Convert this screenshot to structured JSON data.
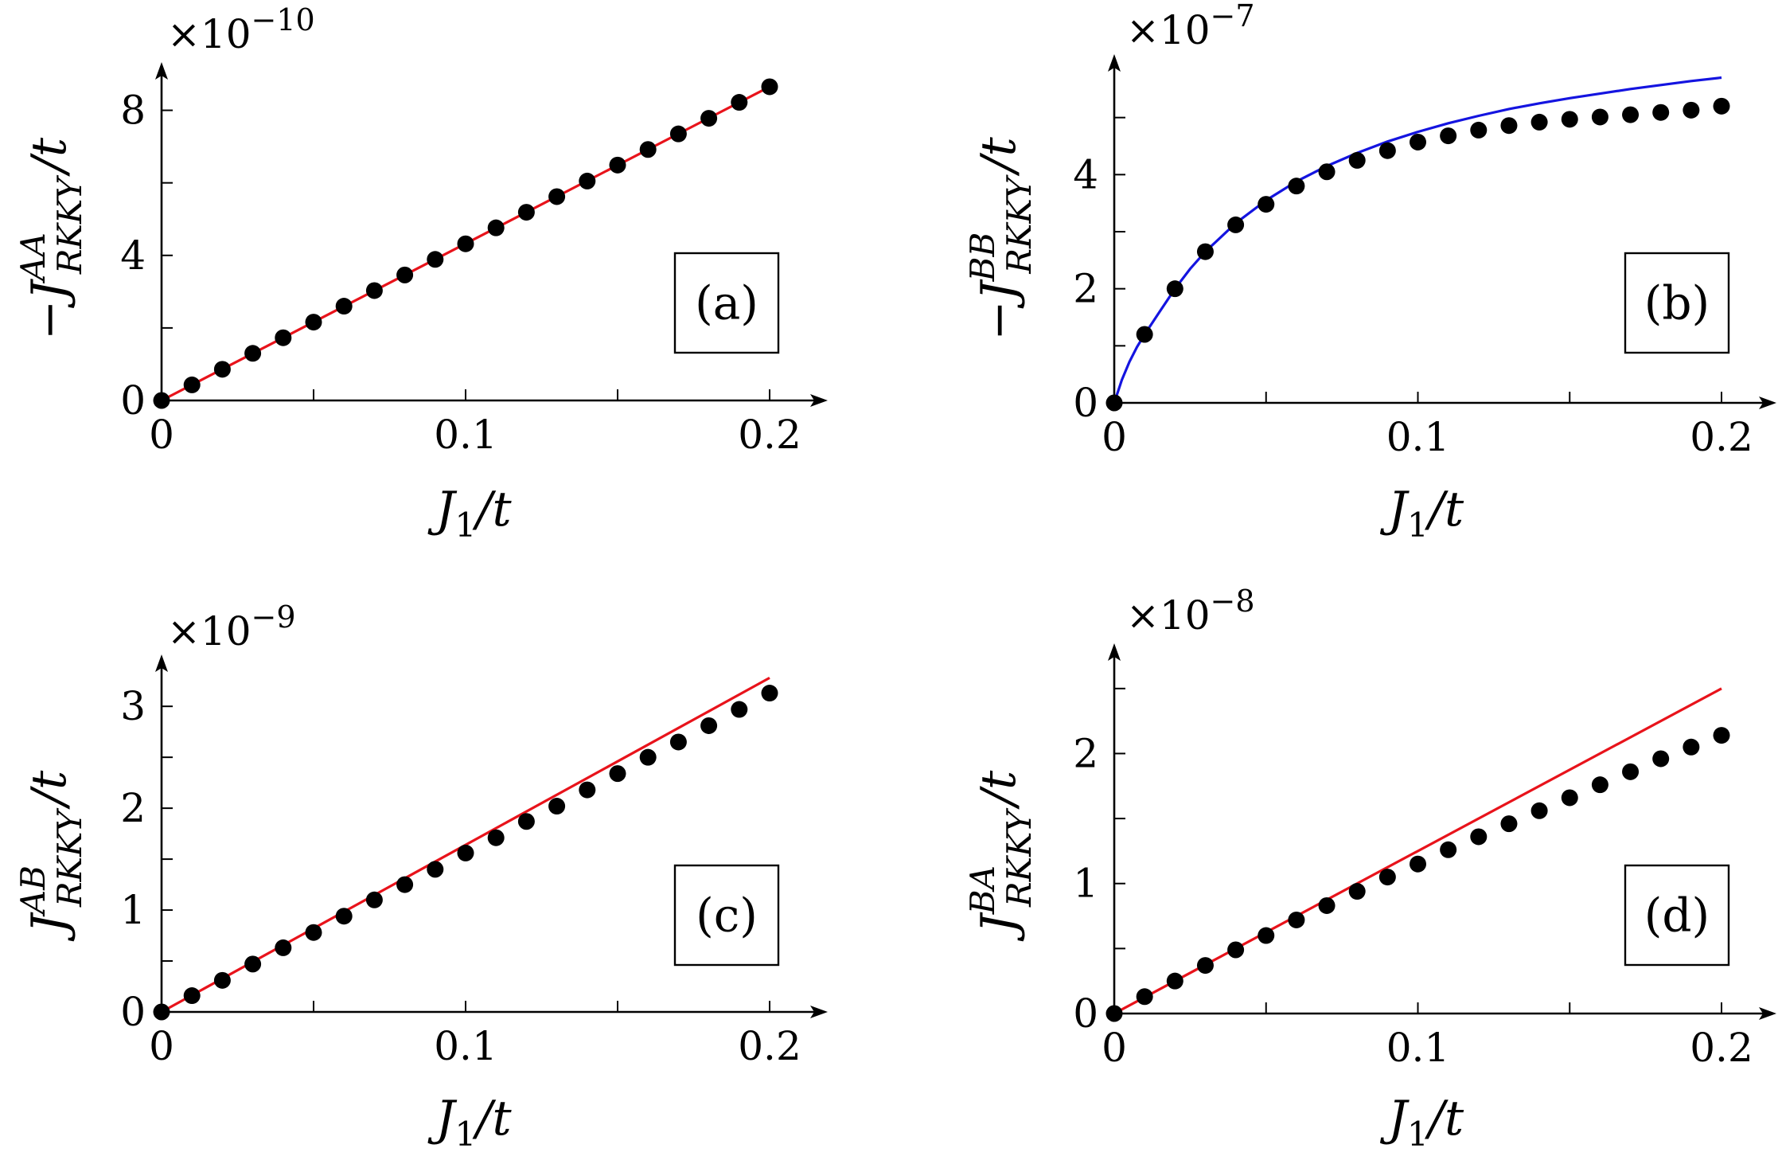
{
  "chart_data": [
    {
      "type": "scatter",
      "panel_label": "(a)",
      "xlabel": "J1/t",
      "ylabel": "−J^AA_RKKY/t",
      "y_multiplier": "×10−10",
      "y_multiplier_base": "×10",
      "y_multiplier_exp": "−10",
      "xlim": [
        0,
        0.2
      ],
      "ylim": [
        0,
        9
      ],
      "xticks": [
        0,
        0.1,
        0.2
      ],
      "xtick_labels": [
        "0",
        "0.1",
        "0.2"
      ],
      "yticks": [
        0,
        4,
        8
      ],
      "ytick_labels": [
        "0",
        "4",
        "8"
      ],
      "y_minor_ticks": [
        2,
        6
      ],
      "grid": false,
      "line_color": "#e8131b",
      "series": [
        {
          "kind": "line",
          "x": [
            0,
            0.2
          ],
          "y": [
            0,
            8.65
          ]
        },
        {
          "kind": "markers",
          "x": [
            0,
            0.01,
            0.02,
            0.03,
            0.04,
            0.05,
            0.06,
            0.07,
            0.08,
            0.09,
            0.1,
            0.11,
            0.12,
            0.13,
            0.14,
            0.15,
            0.16,
            0.17,
            0.18,
            0.19,
            0.2
          ],
          "y": [
            0,
            0.43,
            0.86,
            1.3,
            1.73,
            2.16,
            2.6,
            3.03,
            3.46,
            3.89,
            4.32,
            4.76,
            5.19,
            5.62,
            6.05,
            6.49,
            6.92,
            7.35,
            7.78,
            8.22,
            8.65
          ]
        }
      ]
    },
    {
      "type": "scatter",
      "panel_label": "(b)",
      "xlabel": "J1/t",
      "ylabel": "−J^BB_RKKY/t",
      "y_multiplier": "×10−7",
      "y_multiplier_base": "×10",
      "y_multiplier_exp": "−7",
      "xlim": [
        0,
        0.2
      ],
      "ylim": [
        0,
        6
      ],
      "xticks": [
        0,
        0.1,
        0.2
      ],
      "xtick_labels": [
        "0",
        "0.1",
        "0.2"
      ],
      "yticks": [
        0,
        2,
        4
      ],
      "ytick_labels": [
        "0",
        "2",
        "4"
      ],
      "y_minor_ticks": [
        1,
        3,
        5
      ],
      "grid": false,
      "line_color": "#1414e0",
      "series": [
        {
          "kind": "line",
          "x": [
            0,
            0.0025,
            0.005,
            0.0075,
            0.01,
            0.015,
            0.02,
            0.025,
            0.03,
            0.04,
            0.05,
            0.06,
            0.07,
            0.08,
            0.09,
            0.1,
            0.11,
            0.12,
            0.13,
            0.14,
            0.15,
            0.16,
            0.17,
            0.18,
            0.19,
            0.2
          ],
          "y": [
            0,
            0.4,
            0.72,
            0.98,
            1.2,
            1.6,
            2.0,
            2.35,
            2.65,
            3.15,
            3.55,
            3.88,
            4.15,
            4.38,
            4.58,
            4.75,
            4.9,
            5.03,
            5.15,
            5.25,
            5.34,
            5.42,
            5.5,
            5.57,
            5.64,
            5.7
          ]
        },
        {
          "kind": "markers",
          "x": [
            0,
            0.01,
            0.02,
            0.03,
            0.04,
            0.05,
            0.06,
            0.07,
            0.08,
            0.09,
            0.1,
            0.11,
            0.12,
            0.13,
            0.14,
            0.15,
            0.16,
            0.17,
            0.18,
            0.19,
            0.2
          ],
          "y": [
            0,
            1.2,
            2.0,
            2.65,
            3.12,
            3.48,
            3.8,
            4.05,
            4.25,
            4.42,
            4.57,
            4.68,
            4.78,
            4.86,
            4.92,
            4.97,
            5.01,
            5.05,
            5.09,
            5.13,
            5.2
          ]
        }
      ]
    },
    {
      "type": "scatter",
      "panel_label": "(c)",
      "xlabel": "J1/t",
      "ylabel": "J^AB_RKKY/t",
      "y_multiplier": "×10−9",
      "y_multiplier_base": "×10",
      "y_multiplier_exp": "−9",
      "xlim": [
        0,
        0.2
      ],
      "ylim": [
        0,
        3.4
      ],
      "xticks": [
        0,
        0.1,
        0.2
      ],
      "xtick_labels": [
        "0",
        "0.1",
        "0.2"
      ],
      "yticks": [
        0,
        1,
        2,
        3
      ],
      "ytick_labels": [
        "0",
        "1",
        "2",
        "3"
      ],
      "y_minor_ticks": [
        0.5,
        1.5,
        2.5
      ],
      "grid": false,
      "line_color": "#e8131b",
      "series": [
        {
          "kind": "line",
          "x": [
            0,
            0.2
          ],
          "y": [
            0,
            3.28
          ]
        },
        {
          "kind": "markers",
          "x": [
            0,
            0.01,
            0.02,
            0.03,
            0.04,
            0.05,
            0.06,
            0.07,
            0.08,
            0.09,
            0.1,
            0.11,
            0.12,
            0.13,
            0.14,
            0.15,
            0.16,
            0.17,
            0.18,
            0.19,
            0.2
          ],
          "y": [
            0,
            0.16,
            0.31,
            0.47,
            0.63,
            0.78,
            0.94,
            1.1,
            1.25,
            1.4,
            1.56,
            1.71,
            1.87,
            2.02,
            2.18,
            2.34,
            2.5,
            2.65,
            2.81,
            2.97,
            3.13
          ]
        }
      ]
    },
    {
      "type": "scatter",
      "panel_label": "(d)",
      "xlabel": "J1/t",
      "ylabel": "J^BA_RKKY/t",
      "y_multiplier": "×10−8",
      "y_multiplier_base": "×10",
      "y_multiplier_exp": "−8",
      "xlim": [
        0,
        0.2
      ],
      "ylim": [
        0,
        2.75
      ],
      "xticks": [
        0,
        0.1,
        0.2
      ],
      "xtick_labels": [
        "0",
        "0.1",
        "0.2"
      ],
      "yticks": [
        0,
        1,
        2
      ],
      "ytick_labels": [
        "0",
        "1",
        "2"
      ],
      "y_minor_ticks": [
        0.5,
        1.5,
        2.5
      ],
      "grid": false,
      "line_color": "#e8131b",
      "series": [
        {
          "kind": "line",
          "x": [
            0,
            0.2
          ],
          "y": [
            0,
            2.5
          ]
        },
        {
          "kind": "markers",
          "x": [
            0,
            0.01,
            0.02,
            0.03,
            0.04,
            0.05,
            0.06,
            0.07,
            0.08,
            0.09,
            0.1,
            0.11,
            0.12,
            0.13,
            0.14,
            0.15,
            0.16,
            0.17,
            0.18,
            0.19,
            0.2
          ],
          "y": [
            0,
            0.13,
            0.25,
            0.37,
            0.49,
            0.6,
            0.72,
            0.83,
            0.94,
            1.05,
            1.15,
            1.26,
            1.36,
            1.46,
            1.56,
            1.66,
            1.76,
            1.86,
            1.96,
            2.05,
            2.14
          ]
        }
      ]
    }
  ]
}
